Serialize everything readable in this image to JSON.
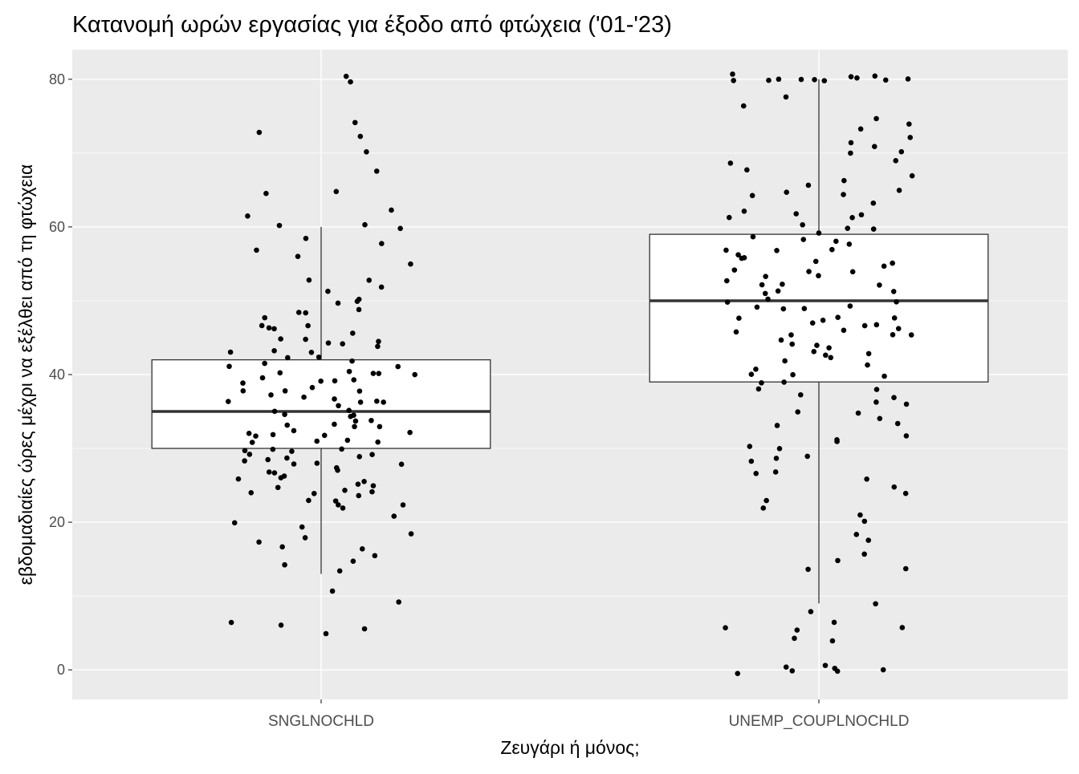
{
  "chart_data": {
    "type": "boxplot",
    "title": "Κατανομή ωρών εργασίας για έξοδο από φτώχεια ('01-'23)",
    "xlabel": "Ζευγάρι ή μόνος;",
    "ylabel": "εβδομαδιαίες ώρες μέχρι να εξέλθει από τη φτώχεια",
    "ylim": [
      -4,
      84
    ],
    "yticks": [
      0,
      20,
      40,
      60,
      80
    ],
    "categories": [
      "SNGLNOCHLD",
      "UNEMP_COUPLNOCHLD"
    ],
    "grid": true,
    "colors": {
      "panel": "#ebebeb",
      "grid": "#ffffff",
      "box_fill": "#ffffff",
      "box_line": "#333333",
      "point": "#000000"
    },
    "boxes": [
      {
        "category": "SNGLNOCHLD",
        "whisker_low": 13,
        "q1": 30,
        "median": 35,
        "q3": 42,
        "whisker_high": 60
      },
      {
        "category": "UNEMP_COUPLNOCHLD",
        "whisker_low": 9,
        "q1": 39,
        "median": 50,
        "q3": 59,
        "whisker_high": 80
      }
    ],
    "points": [
      {
        "category": "SNGLNOCHLD",
        "y": [
          79.8,
          80,
          74,
          72.5,
          72,
          70.3,
          67.8,
          65,
          64.3,
          62,
          61.5,
          60.4,
          60.3,
          59.5,
          58.5,
          58,
          57,
          56,
          55,
          53,
          52.5,
          52,
          51,
          50.5,
          50,
          50,
          49,
          48.5,
          48,
          47,
          46.5,
          46,
          45,
          45,
          44.5,
          44,
          44,
          43,
          43,
          42,
          42,
          41.5,
          41,
          41,
          40.5,
          40,
          40,
          40,
          39.5,
          39,
          39,
          38.5,
          38,
          38,
          37.5,
          37,
          37,
          36.5,
          36,
          36,
          35.5,
          35,
          35,
          35,
          34.5,
          34,
          34,
          33.5,
          33,
          33,
          32.5,
          32,
          32,
          32,
          31.5,
          31,
          31,
          30.5,
          30,
          30,
          30,
          29.5,
          29,
          29,
          28.5,
          28,
          28,
          27.5,
          27,
          27,
          26.5,
          26,
          26,
          25.5,
          25,
          25,
          24.5,
          24,
          24,
          23.5,
          23,
          23,
          22.5,
          22,
          22,
          21,
          20,
          19,
          18.8,
          18,
          17,
          16.3,
          16,
          15.5,
          14.4,
          14,
          13.3,
          11,
          9,
          6.3,
          5.8,
          5.2,
          4.6,
          48,
          46,
          44,
          42,
          40,
          38,
          36,
          34,
          32,
          30,
          28,
          26,
          24,
          47,
          43,
          39,
          37,
          33,
          31,
          29,
          27,
          25
        ]
      },
      {
        "category": "UNEMP_COUPLNOCHLD",
        "y": [
          80.3,
          80.2,
          80.1,
          80,
          80,
          79.9,
          79.8,
          79.8,
          80,
          80.2,
          80.1,
          79.9,
          78,
          76,
          74.6,
          73.7,
          73,
          72,
          71.7,
          71,
          70,
          69,
          68.5,
          68,
          67,
          66,
          65,
          64,
          63,
          62,
          62,
          61,
          60,
          60,
          59,
          58,
          58,
          57,
          56,
          56,
          55,
          55,
          54,
          54,
          53,
          52,
          52,
          51,
          50,
          50,
          49,
          49,
          48,
          48,
          47,
          47,
          46,
          46,
          45,
          45,
          44,
          44,
          43,
          43,
          42,
          41,
          40,
          40,
          39,
          38,
          37,
          36,
          35,
          34,
          33,
          32,
          31,
          30,
          30,
          29,
          28,
          27,
          26,
          25,
          24,
          23,
          22,
          21,
          20,
          18,
          17.7,
          16,
          15,
          14,
          13.7,
          8.7,
          7.7,
          6.8,
          6,
          5.8,
          5.7,
          4.3,
          3.7,
          1,
          0.4,
          0.2,
          0,
          -0.2,
          0,
          -0.1,
          58,
          56,
          54,
          52,
          50,
          48,
          46,
          44,
          42,
          40,
          38,
          36,
          66,
          64,
          62,
          60,
          57,
          55,
          53,
          51,
          49,
          47,
          45,
          43,
          41,
          39,
          37,
          35,
          33,
          31,
          29,
          27,
          70,
          65,
          61,
          59,
          57,
          53,
          51,
          49,
          47,
          45
        ]
      }
    ]
  }
}
